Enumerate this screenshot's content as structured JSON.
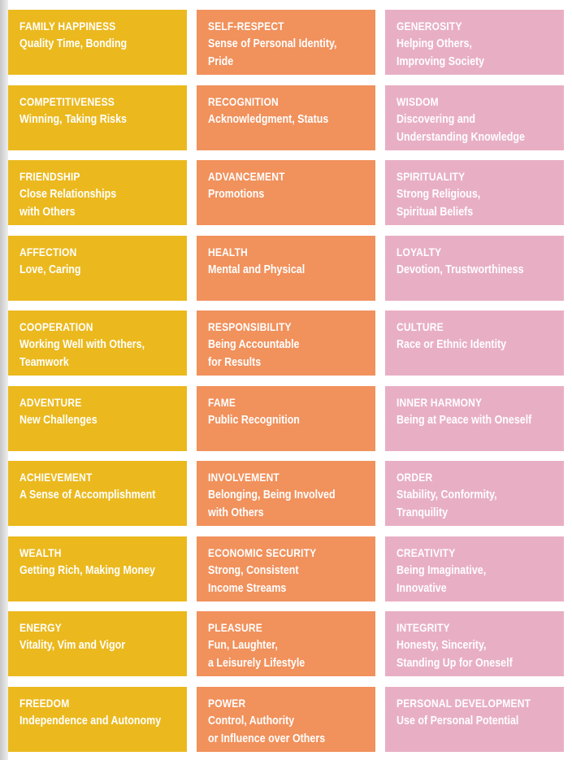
{
  "colors": {
    "yellow": "#EBB91E",
    "orange": "#F1915C",
    "pink": "#E8AFC4"
  },
  "columns": [
    {
      "color": "yellow",
      "cards": [
        {
          "title": "FAMILY HAPPINESS",
          "desc": "Quality Time, Bonding"
        },
        {
          "title": "COMPETITIVENESS",
          "desc": "Winning, Taking Risks"
        },
        {
          "title": "FRIENDSHIP",
          "desc": "Close Relationships\nwith Others"
        },
        {
          "title": "AFFECTION",
          "desc": "Love, Caring"
        },
        {
          "title": "COOPERATION",
          "desc": "Working Well with Others,\nTeamwork"
        },
        {
          "title": "ADVENTURE",
          "desc": "New Challenges"
        },
        {
          "title": "ACHIEVEMENT",
          "desc": "A Sense of Accomplishment"
        },
        {
          "title": "WEALTH",
          "desc": "Getting Rich, Making Money"
        },
        {
          "title": "ENERGY",
          "desc": "Vitality, Vim and Vigor"
        },
        {
          "title": "FREEDOM",
          "desc": "Independence and Autonomy"
        }
      ]
    },
    {
      "color": "orange",
      "cards": [
        {
          "title": "SELF-RESPECT",
          "desc": "Sense of Personal Identity,\nPride"
        },
        {
          "title": "RECOGNITION",
          "desc": "Acknowledgment, Status"
        },
        {
          "title": "ADVANCEMENT",
          "desc": "Promotions"
        },
        {
          "title": "HEALTH",
          "desc": "Mental and Physical"
        },
        {
          "title": "RESPONSIBILITY",
          "desc": "Being Accountable\nfor Results"
        },
        {
          "title": "FAME",
          "desc": "Public Recognition"
        },
        {
          "title": "INVOLVEMENT",
          "desc": "Belonging, Being Involved\nwith Others"
        },
        {
          "title": "ECONOMIC SECURITY",
          "desc": "Strong, Consistent\nIncome Streams"
        },
        {
          "title": "PLEASURE",
          "desc": "Fun, Laughter,\na Leisurely Lifestyle"
        },
        {
          "title": "POWER",
          "desc": "Control, Authority\nor Influence over Others"
        }
      ]
    },
    {
      "color": "pink",
      "cards": [
        {
          "title": "GENEROSITY",
          "desc": "Helping Others,\nImproving Society"
        },
        {
          "title": "WISDOM",
          "desc": "Discovering and\nUnderstanding Knowledge"
        },
        {
          "title": "SPIRITUALITY",
          "desc": "Strong Religious,\nSpiritual Beliefs"
        },
        {
          "title": "LOYALTY",
          "desc": "Devotion, Trustworthiness"
        },
        {
          "title": "CULTURE",
          "desc": "Race or Ethnic Identity"
        },
        {
          "title": "INNER HARMONY",
          "desc": "Being at Peace with Oneself"
        },
        {
          "title": "ORDER",
          "desc": "Stability, Conformity,\nTranquility"
        },
        {
          "title": "CREATIVITY",
          "desc": "Being Imaginative,\nInnovative"
        },
        {
          "title": "INTEGRITY",
          "desc": "Honesty, Sincerity,\nStanding Up for Oneself"
        },
        {
          "title": "PERSONAL DEVELOPMENT",
          "desc": "Use of Personal Potential"
        }
      ]
    }
  ]
}
